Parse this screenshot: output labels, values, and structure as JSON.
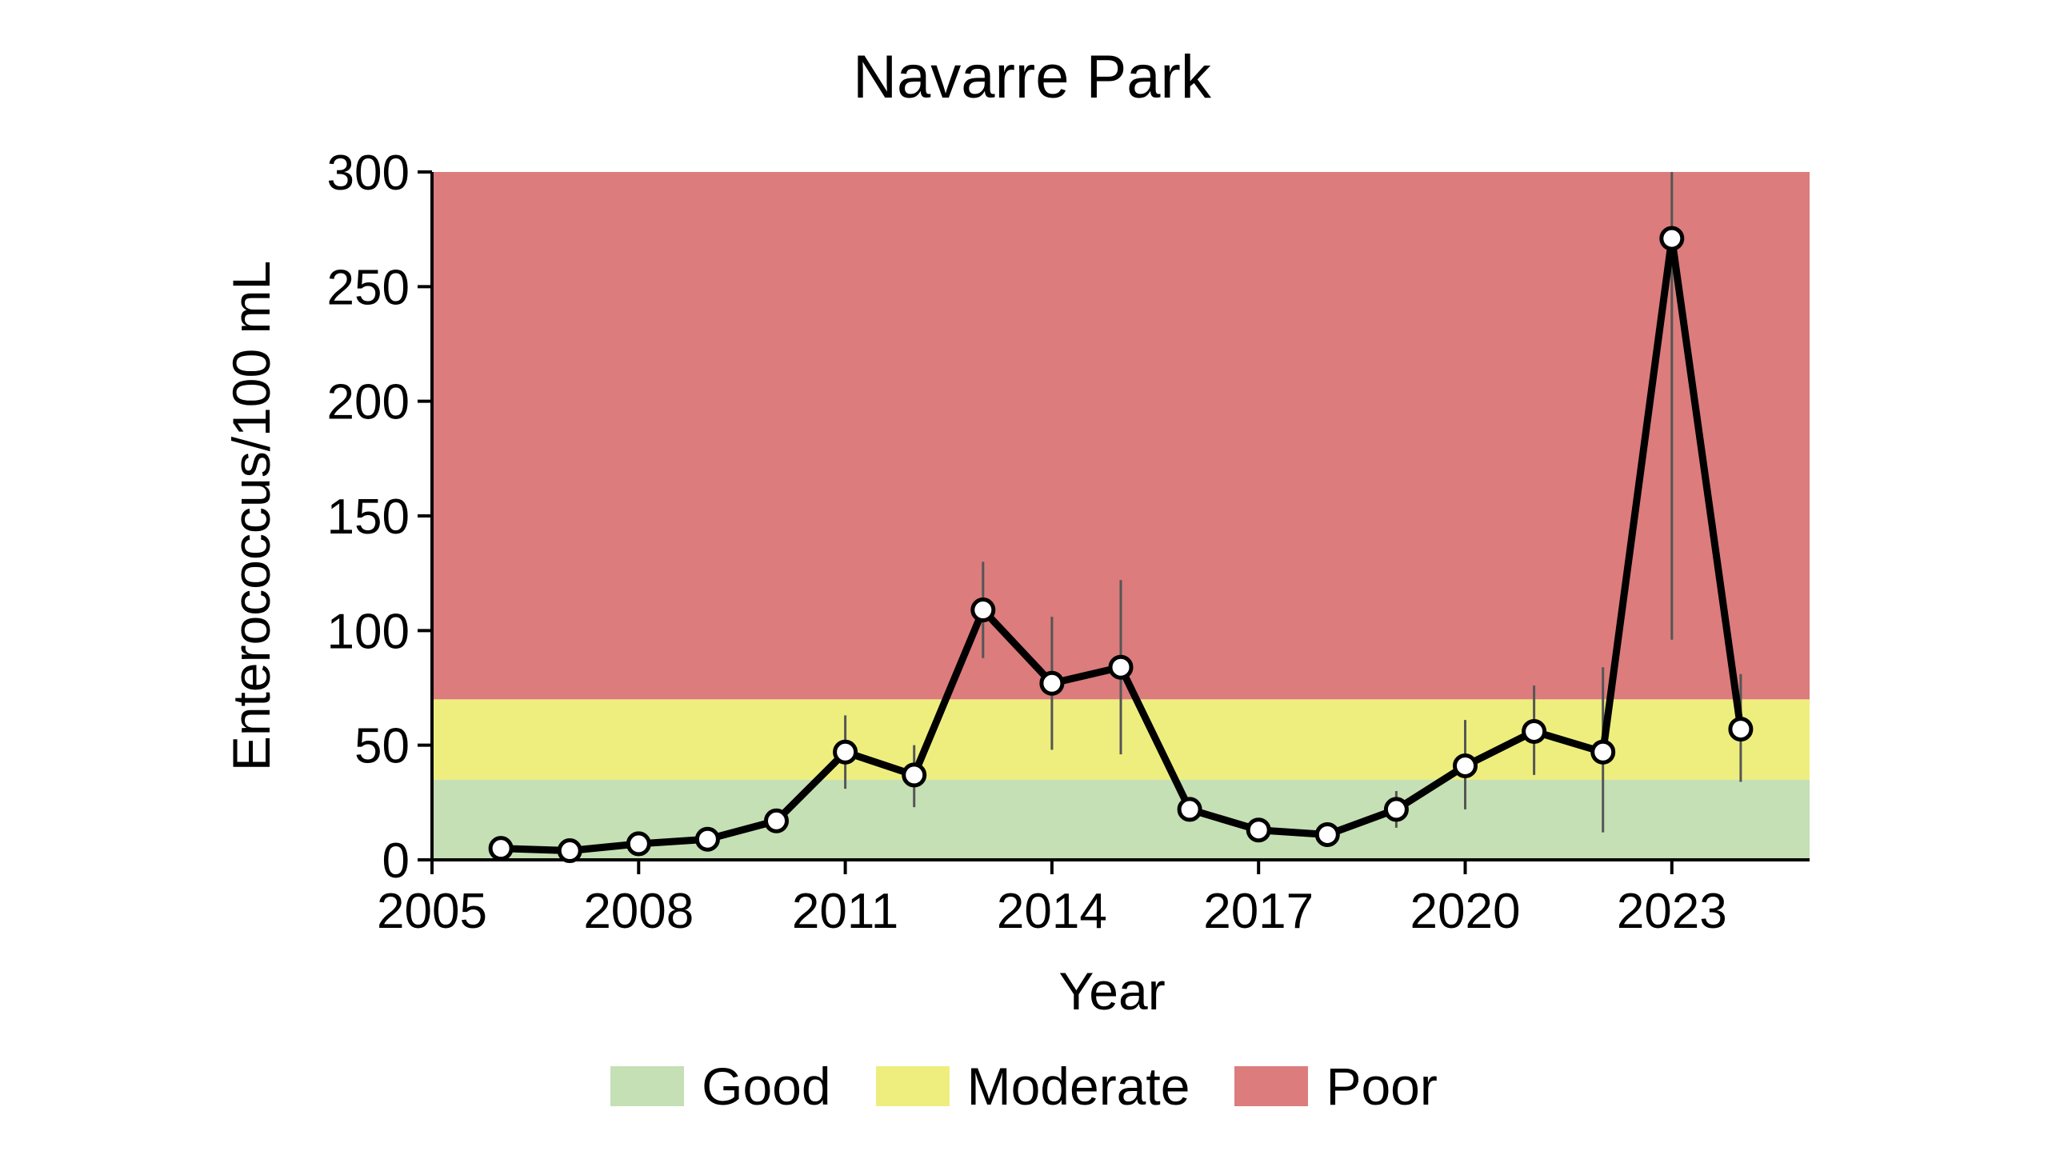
{
  "chart_data": {
    "type": "line",
    "title": "Navarre Park",
    "xlabel": "Year",
    "ylabel": "Enterococcus/100 mL",
    "xlim": [
      2005,
      2025
    ],
    "ylim": [
      0,
      300
    ],
    "xticks": [
      2005,
      2008,
      2011,
      2014,
      2017,
      2020,
      2023
    ],
    "yticks": [
      0,
      50,
      100,
      150,
      200,
      250,
      300
    ],
    "bands": [
      {
        "name": "Good",
        "from": 0,
        "to": 35,
        "color": "#c5e0b4"
      },
      {
        "name": "Moderate",
        "from": 35,
        "to": 70,
        "color": "#eeee7e"
      },
      {
        "name": "Poor",
        "from": 70,
        "to": 300,
        "color": "#dc7c7c"
      }
    ],
    "series": [
      {
        "x": [
          2006,
          2007,
          2008,
          2009,
          2010,
          2011,
          2012,
          2013,
          2014,
          2015,
          2016,
          2017,
          2018,
          2019,
          2020,
          2021,
          2022,
          2023,
          2024
        ],
        "y": [
          5,
          4,
          7,
          9,
          17,
          47,
          37,
          109,
          77,
          84,
          22,
          13,
          11,
          22,
          41,
          56,
          47,
          271,
          57
        ],
        "err_low": [
          null,
          null,
          null,
          null,
          null,
          31,
          23,
          88,
          48,
          46,
          22,
          null,
          null,
          14,
          22,
          37,
          12,
          96,
          34
        ],
        "err_high": [
          null,
          null,
          null,
          null,
          null,
          63,
          50,
          130,
          106,
          122,
          22,
          null,
          null,
          30,
          61,
          76,
          84,
          300,
          81
        ],
        "color": "#000000"
      }
    ],
    "legend": {
      "position": "bottom",
      "entries": [
        "Good",
        "Moderate",
        "Poor"
      ]
    }
  }
}
